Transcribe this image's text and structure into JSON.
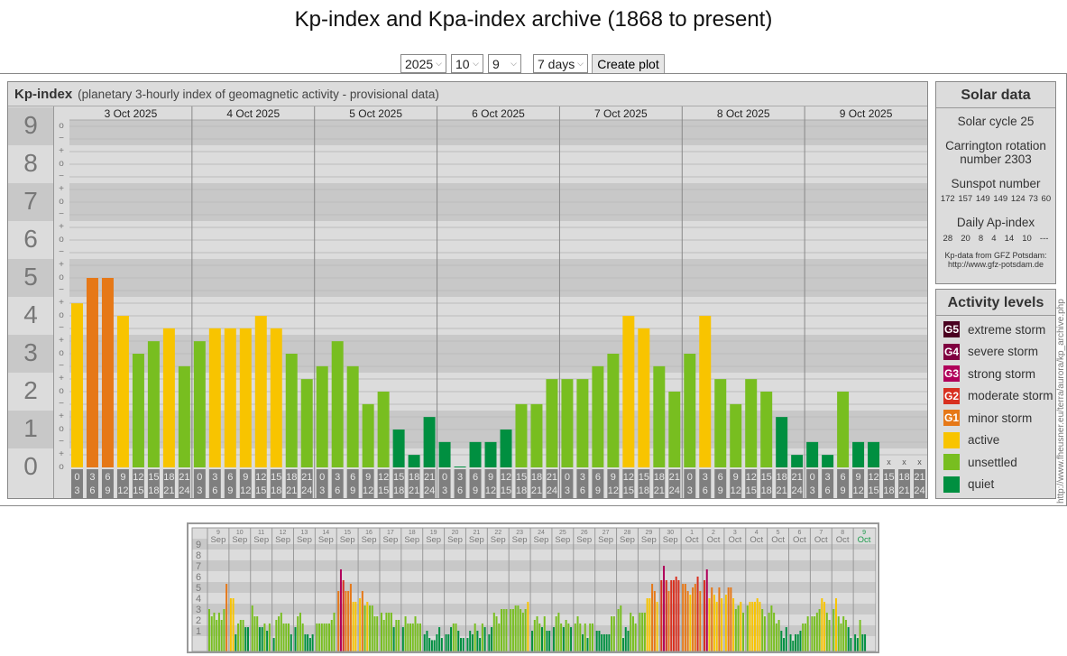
{
  "title": "Kp-index and Kpa-index archive (1868 to present)",
  "controls": {
    "year": "2025",
    "month": "10",
    "day": "9",
    "period": "7 days",
    "create_label": "Create plot"
  },
  "kp_panel": {
    "title": "Kp-index",
    "subtitle": "(planetary 3-hourly index of geomagnetic activity - provisional data)",
    "levels": [
      "0",
      "1",
      "2",
      "3",
      "4",
      "5",
      "6",
      "7",
      "8",
      "9"
    ],
    "tick_symbols": {
      "minus": "−",
      "mid": "o",
      "plus": "+"
    },
    "missing_mark": "x"
  },
  "chart_data": {
    "type": "bar",
    "title": "Kp-index",
    "ylim": [
      0,
      9
    ],
    "days": [
      "3 Oct 2025",
      "4 Oct 2025",
      "5 Oct 2025",
      "6 Oct 2025",
      "7 Oct 2025",
      "8 Oct 2025",
      "9 Oct 2025"
    ],
    "intervals": [
      [
        "0",
        "3"
      ],
      [
        "3",
        "6"
      ],
      [
        "6",
        "9"
      ],
      [
        "9",
        "12"
      ],
      [
        "12",
        "15"
      ],
      [
        "15",
        "18"
      ],
      [
        "18",
        "21"
      ],
      [
        "21",
        "24"
      ]
    ],
    "values": [
      [
        4.33,
        5,
        5,
        4,
        3,
        3.33,
        3.67,
        2.67
      ],
      [
        3.33,
        3.67,
        3.67,
        3.67,
        4,
        3.67,
        3,
        2.33
      ],
      [
        2.67,
        3.33,
        2.67,
        1.67,
        2,
        1,
        0.33,
        1.33
      ],
      [
        0.67,
        0,
        0.67,
        0.67,
        1,
        1.67,
        1.67,
        2.33
      ],
      [
        2.33,
        2.33,
        2.67,
        3,
        4,
        3.67,
        2.67,
        2
      ],
      [
        3,
        4,
        2.33,
        1.67,
        2.33,
        2,
        1.33,
        0.33
      ],
      [
        0.67,
        0.33,
        2,
        0.67,
        0.67,
        null,
        null,
        null
      ]
    ]
  },
  "mini_chart": {
    "type": "bar",
    "levels": [
      "1",
      "2",
      "3",
      "4",
      "5",
      "6",
      "7",
      "8",
      "9"
    ],
    "days": [
      [
        "9",
        "Sep"
      ],
      [
        "10",
        "Sep"
      ],
      [
        "11",
        "Sep"
      ],
      [
        "12",
        "Sep"
      ],
      [
        "13",
        "Sep"
      ],
      [
        "14",
        "Sep"
      ],
      [
        "15",
        "Sep"
      ],
      [
        "16",
        "Sep"
      ],
      [
        "17",
        "Sep"
      ],
      [
        "18",
        "Sep"
      ],
      [
        "19",
        "Sep"
      ],
      [
        "20",
        "Sep"
      ],
      [
        "21",
        "Sep"
      ],
      [
        "22",
        "Sep"
      ],
      [
        "23",
        "Sep"
      ],
      [
        "24",
        "Sep"
      ],
      [
        "25",
        "Sep"
      ],
      [
        "26",
        "Sep"
      ],
      [
        "27",
        "Sep"
      ],
      [
        "28",
        "Sep"
      ],
      [
        "29",
        "Sep"
      ],
      [
        "30",
        "Sep"
      ],
      [
        "1",
        "Oct"
      ],
      [
        "2",
        "Oct"
      ],
      [
        "3",
        "Oct"
      ],
      [
        "4",
        "Oct"
      ],
      [
        "5",
        "Oct"
      ],
      [
        "6",
        "Oct"
      ],
      [
        "7",
        "Oct"
      ],
      [
        "8",
        "Oct"
      ],
      [
        "9",
        "Oct"
      ]
    ],
    "values": [
      [
        3,
        2.33,
        2.67,
        2,
        2.67,
        2,
        3,
        5.33
      ],
      [
        4,
        4,
        0.67,
        1.67,
        2,
        2,
        1.33,
        1.33
      ],
      [
        3.33,
        2.33,
        2.33,
        1.33,
        1.33,
        1.67,
        1,
        1.67
      ],
      [
        0.33,
        2,
        2.33,
        2.67,
        1.67,
        1.67,
        1.67,
        0.67
      ],
      [
        1.33,
        2.33,
        2.67,
        1.67,
        0.67,
        0.67,
        0.33,
        0.67
      ],
      [
        1.67,
        1.67,
        1.67,
        1.67,
        1.67,
        1.67,
        2,
        2.67
      ],
      [
        4.67,
        6.67,
        5.67,
        4.67,
        4.67,
        5.33,
        3.67,
        3.67
      ],
      [
        4,
        4.67,
        3.33,
        3.67,
        3.33,
        3.33,
        2.33,
        2.33
      ],
      [
        2.67,
        2,
        2.67,
        2.67,
        2.67,
        1.33,
        2,
        2
      ],
      [
        1.33,
        2.33,
        1.67,
        1.67,
        1.67,
        2.33,
        1.67,
        1.67
      ],
      [
        0.67,
        1,
        0.33,
        0.13,
        0.13,
        0.67,
        1.33,
        0.33
      ],
      [
        0.67,
        0.67,
        1.33,
        1.67,
        1.67,
        1,
        0.33,
        0.33
      ],
      [
        0.33,
        1,
        0.67,
        1.67,
        1,
        0.33,
        1.67,
        1.33
      ],
      [
        0.67,
        1.33,
        2.67,
        2.33,
        1.67,
        3,
        3,
        3
      ],
      [
        3,
        3,
        3.33,
        3.33,
        3,
        2.67,
        3,
        3.67
      ],
      [
        1,
        2,
        2.33,
        1.67,
        1.33,
        2.33,
        1,
        1
      ],
      [
        1.33,
        2.33,
        2.67,
        1.67,
        1.33,
        2,
        1.67,
        1.33
      ],
      [
        1.67,
        2.33,
        1.67,
        0.67,
        1.67,
        0.33,
        1.67,
        1.67
      ],
      [
        1,
        1,
        0.67,
        0.67,
        0.67,
        0.67,
        2.33,
        2.33
      ],
      [
        3,
        3.33,
        0.33,
        1.33,
        1,
        2.67,
        2.33,
        1.67
      ],
      [
        2.67,
        2.67,
        2.67,
        4,
        4,
        5.33,
        4.67,
        3.67
      ],
      [
        5.67,
        7,
        5.67,
        4.67,
        5.67,
        5.67,
        6,
        5.67
      ],
      [
        5.33,
        5.33,
        4.67,
        4.33,
        5,
        5.33,
        6,
        4.67
      ],
      [
        5.67,
        6.67,
        4,
        5,
        4.33,
        3.67,
        5,
        4
      ],
      [
        4.33,
        5,
        5,
        4,
        3,
        3.33,
        3.67,
        2.67
      ],
      [
        3.33,
        3.67,
        3.67,
        3.67,
        4,
        3.67,
        3,
        2.33
      ],
      [
        2.67,
        3.33,
        2.67,
        1.67,
        2,
        1,
        0.33,
        1.33
      ],
      [
        0.67,
        0,
        0.67,
        0.67,
        1,
        1.67,
        1.67,
        2.33
      ],
      [
        2.33,
        2.33,
        2.67,
        3,
        4,
        3.67,
        2.67,
        2
      ],
      [
        3,
        4,
        2.33,
        1.67,
        2.33,
        2,
        1.33,
        0.33
      ],
      [
        0.67,
        0.33,
        2,
        0.67,
        0.67,
        null,
        null,
        null
      ]
    ]
  },
  "solar": {
    "title": "Solar data",
    "cycle": "Solar cycle 25",
    "carrington_1": "Carrington rotation",
    "carrington_2": "number 2303",
    "sunspot_label": "Sunspot number",
    "sunspots": [
      "172",
      "157",
      "149",
      "149",
      "124",
      "73",
      "60"
    ],
    "ap_label": "Daily Ap-index",
    "ap": [
      "28",
      "20",
      "8",
      "4",
      "14",
      "10",
      "---"
    ],
    "credit_1": "Kp-data from GFZ Potsdam:",
    "credit_2": "http://www.gfz-potsdam.de"
  },
  "activity": {
    "title": "Activity levels",
    "items": [
      {
        "code": "G5",
        "label": "extreme storm",
        "color": "#4a0020"
      },
      {
        "code": "G4",
        "label": "severe storm",
        "color": "#800040"
      },
      {
        "code": "G3",
        "label": "strong storm",
        "color": "#b0005a"
      },
      {
        "code": "G2",
        "label": "moderate storm",
        "color": "#d83020"
      },
      {
        "code": "G1",
        "label": "minor storm",
        "color": "#e67817"
      },
      {
        "code": "",
        "label": "active",
        "color": "#f8c400"
      },
      {
        "code": "",
        "label": "unsettled",
        "color": "#78be20"
      },
      {
        "code": "",
        "label": "quiet",
        "color": "#008f40"
      }
    ]
  },
  "source_url": "http://www.fheusner.eu/terra/aurora/kp_archive.php"
}
